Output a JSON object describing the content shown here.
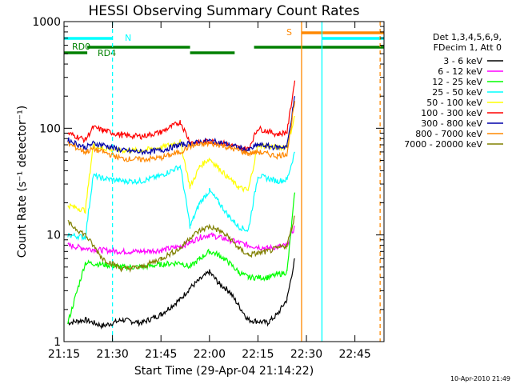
{
  "chart_data": {
    "type": "line",
    "title": "HESSI Observing Summary Count Rates",
    "xlabel": "Start Time (29-Apr-04 21:14:22)",
    "ylabel": "Count Rate (s⁻¹ detector⁻¹)",
    "x_range_minutes": [
      21.25,
      22.9
    ],
    "ylim": [
      1,
      1000
    ],
    "yscale": "log",
    "x_ticks": [
      "21:15",
      "21:30",
      "21:45",
      "22:00",
      "22:15",
      "22:30",
      "22:45"
    ],
    "y_ticks": [
      "1",
      "10",
      "100",
      "1000"
    ],
    "legend_header": [
      "Det 1,3,4,5,6,9,",
      "FDecim 1, Att 0"
    ],
    "legend_position": "right",
    "series": [
      {
        "name": "3 - 6 keV",
        "color": "#000000",
        "points": [
          [
            21.27,
            1.5
          ],
          [
            21.36,
            1.6
          ],
          [
            21.45,
            1.4
          ],
          [
            21.55,
            1.6
          ],
          [
            21.65,
            1.5
          ],
          [
            21.75,
            1.8
          ],
          [
            21.85,
            2.5
          ],
          [
            21.9,
            3.2
          ],
          [
            22.0,
            4.5
          ],
          [
            22.05,
            3.5
          ],
          [
            22.1,
            3.0
          ],
          [
            22.2,
            1.6
          ],
          [
            22.3,
            1.5
          ],
          [
            22.35,
            1.8
          ],
          [
            22.4,
            2.5
          ],
          [
            22.44,
            6
          ]
        ]
      },
      {
        "name": "6 - 12 keV",
        "color": "#ff00ff",
        "points": [
          [
            21.27,
            8
          ],
          [
            21.36,
            7.5
          ],
          [
            21.45,
            7.2
          ],
          [
            21.55,
            7.0
          ],
          [
            21.65,
            7.0
          ],
          [
            21.75,
            7.2
          ],
          [
            21.85,
            7.8
          ],
          [
            21.9,
            8.5
          ],
          [
            21.95,
            9.5
          ],
          [
            22.0,
            10
          ],
          [
            22.05,
            9.5
          ],
          [
            22.1,
            9.0
          ],
          [
            22.15,
            8.5
          ],
          [
            22.2,
            8.0
          ],
          [
            22.3,
            7.5
          ],
          [
            22.4,
            8
          ],
          [
            22.44,
            12
          ]
        ]
      },
      {
        "name": "12 - 25 keV",
        "color": "#00ff00",
        "points": [
          [
            21.27,
            1.5
          ],
          [
            21.36,
            5.5
          ],
          [
            21.45,
            5.3
          ],
          [
            21.55,
            5.0
          ],
          [
            21.65,
            5.0
          ],
          [
            21.75,
            5.3
          ],
          [
            21.85,
            5.5
          ],
          [
            21.9,
            5.0
          ],
          [
            21.95,
            6.0
          ],
          [
            22.0,
            7.0
          ],
          [
            22.05,
            6.5
          ],
          [
            22.1,
            5.5
          ],
          [
            22.15,
            4.5
          ],
          [
            22.2,
            4.0
          ],
          [
            22.3,
            4.0
          ],
          [
            22.4,
            4.5
          ],
          [
            22.44,
            25
          ]
        ]
      },
      {
        "name": "25 - 50 keV",
        "color": "#00ffff",
        "points": [
          [
            21.27,
            10
          ],
          [
            21.36,
            9.5
          ],
          [
            21.4,
            36
          ],
          [
            21.45,
            34
          ],
          [
            21.55,
            32
          ],
          [
            21.65,
            32
          ],
          [
            21.75,
            36
          ],
          [
            21.85,
            44
          ],
          [
            21.9,
            12
          ],
          [
            21.95,
            20
          ],
          [
            22.0,
            26
          ],
          [
            22.05,
            20
          ],
          [
            22.1,
            15
          ],
          [
            22.15,
            12
          ],
          [
            22.2,
            11
          ],
          [
            22.25,
            36
          ],
          [
            22.35,
            32
          ],
          [
            22.4,
            33
          ],
          [
            22.44,
            60
          ]
        ]
      },
      {
        "name": "50 - 100 keV",
        "color": "#ffff00",
        "points": [
          [
            21.27,
            19
          ],
          [
            21.36,
            17
          ],
          [
            21.4,
            69
          ],
          [
            21.45,
            65
          ],
          [
            21.55,
            62
          ],
          [
            21.65,
            62
          ],
          [
            21.75,
            66
          ],
          [
            21.85,
            75
          ],
          [
            21.9,
            28
          ],
          [
            21.95,
            44
          ],
          [
            22.0,
            52
          ],
          [
            22.05,
            42
          ],
          [
            22.1,
            34
          ],
          [
            22.15,
            28
          ],
          [
            22.2,
            26
          ],
          [
            22.25,
            70
          ],
          [
            22.35,
            66
          ],
          [
            22.4,
            68
          ],
          [
            22.44,
            130
          ]
        ]
      },
      {
        "name": "100 - 300 keV",
        "color": "#ff0000",
        "points": [
          [
            21.27,
            90
          ],
          [
            21.36,
            78
          ],
          [
            21.4,
            102
          ],
          [
            21.45,
            96
          ],
          [
            21.55,
            86
          ],
          [
            21.65,
            84
          ],
          [
            21.75,
            92
          ],
          [
            21.85,
            115
          ],
          [
            21.9,
            74
          ],
          [
            21.95,
            73
          ],
          [
            22.0,
            76
          ],
          [
            22.05,
            74
          ],
          [
            22.1,
            70
          ],
          [
            22.15,
            66
          ],
          [
            22.2,
            64
          ],
          [
            22.25,
            100
          ],
          [
            22.35,
            88
          ],
          [
            22.4,
            92
          ],
          [
            22.44,
            280
          ]
        ]
      },
      {
        "name": "300 - 800 keV",
        "color": "#0000aa",
        "points": [
          [
            21.27,
            78
          ],
          [
            21.36,
            66
          ],
          [
            21.4,
            72
          ],
          [
            21.45,
            70
          ],
          [
            21.55,
            62
          ],
          [
            21.65,
            60
          ],
          [
            21.75,
            62
          ],
          [
            21.85,
            70
          ],
          [
            21.9,
            72
          ],
          [
            21.95,
            74
          ],
          [
            22.0,
            76
          ],
          [
            22.05,
            74
          ],
          [
            22.1,
            70
          ],
          [
            22.15,
            66
          ],
          [
            22.2,
            62
          ],
          [
            22.25,
            70
          ],
          [
            22.35,
            66
          ],
          [
            22.4,
            68
          ],
          [
            22.44,
            200
          ]
        ]
      },
      {
        "name": "800 - 7000 keV",
        "color": "#ff8800",
        "points": [
          [
            21.27,
            72
          ],
          [
            21.36,
            60
          ],
          [
            21.4,
            64
          ],
          [
            21.45,
            60
          ],
          [
            21.55,
            52
          ],
          [
            21.65,
            51
          ],
          [
            21.75,
            53
          ],
          [
            21.85,
            60
          ],
          [
            21.9,
            68
          ],
          [
            21.95,
            70
          ],
          [
            22.0,
            72
          ],
          [
            22.05,
            70
          ],
          [
            22.1,
            66
          ],
          [
            22.15,
            62
          ],
          [
            22.2,
            58
          ],
          [
            22.25,
            60
          ],
          [
            22.35,
            55
          ],
          [
            22.4,
            58
          ],
          [
            22.44,
            180
          ]
        ]
      },
      {
        "name": "7000 - 20000 keV",
        "color": "#808000",
        "points": [
          [
            21.27,
            13
          ],
          [
            21.36,
            10
          ],
          [
            21.45,
            6.0
          ],
          [
            21.55,
            4.8
          ],
          [
            21.65,
            5.0
          ],
          [
            21.75,
            6.0
          ],
          [
            21.85,
            7.5
          ],
          [
            21.9,
            9.5
          ],
          [
            21.95,
            11
          ],
          [
            22.0,
            12
          ],
          [
            22.05,
            11
          ],
          [
            22.1,
            9.5
          ],
          [
            22.15,
            7.5
          ],
          [
            22.2,
            6.5
          ],
          [
            22.3,
            7.0
          ],
          [
            22.4,
            8.0
          ],
          [
            22.44,
            15
          ]
        ]
      }
    ],
    "state_bars": [
      {
        "label": "N",
        "color": "#00ffff",
        "segments": [
          [
            21.25,
            21.5
          ]
        ]
      },
      {
        "label": "RD0",
        "color": "#008000",
        "segments": [
          [
            21.25,
            21.37
          ]
        ]
      },
      {
        "label": "RD4",
        "color": "#008000",
        "segments": [
          [
            21.37,
            21.9
          ],
          [
            22.23,
            22.9
          ]
        ]
      },
      {
        "label": "",
        "color": "#008000",
        "segments": [
          [
            21.9,
            22.13
          ]
        ]
      },
      {
        "label": "S",
        "color": "#ff8800",
        "segments": [
          [
            22.475,
            22.9
          ]
        ]
      },
      {
        "label": "",
        "color": "#00ffff",
        "segments": [
          [
            22.58,
            22.9
          ]
        ]
      }
    ],
    "vertical_markers": [
      {
        "x": 21.5,
        "color": "#00ffff",
        "style": "dashed"
      },
      {
        "x": 22.475,
        "color": "#ff8800",
        "style": "solid"
      },
      {
        "x": 22.58,
        "color": "#00ffff",
        "style": "solid"
      },
      {
        "x": 22.88,
        "color": "#ff8800",
        "style": "dashed"
      }
    ],
    "generated": "10-Apr-2010 21:49"
  }
}
